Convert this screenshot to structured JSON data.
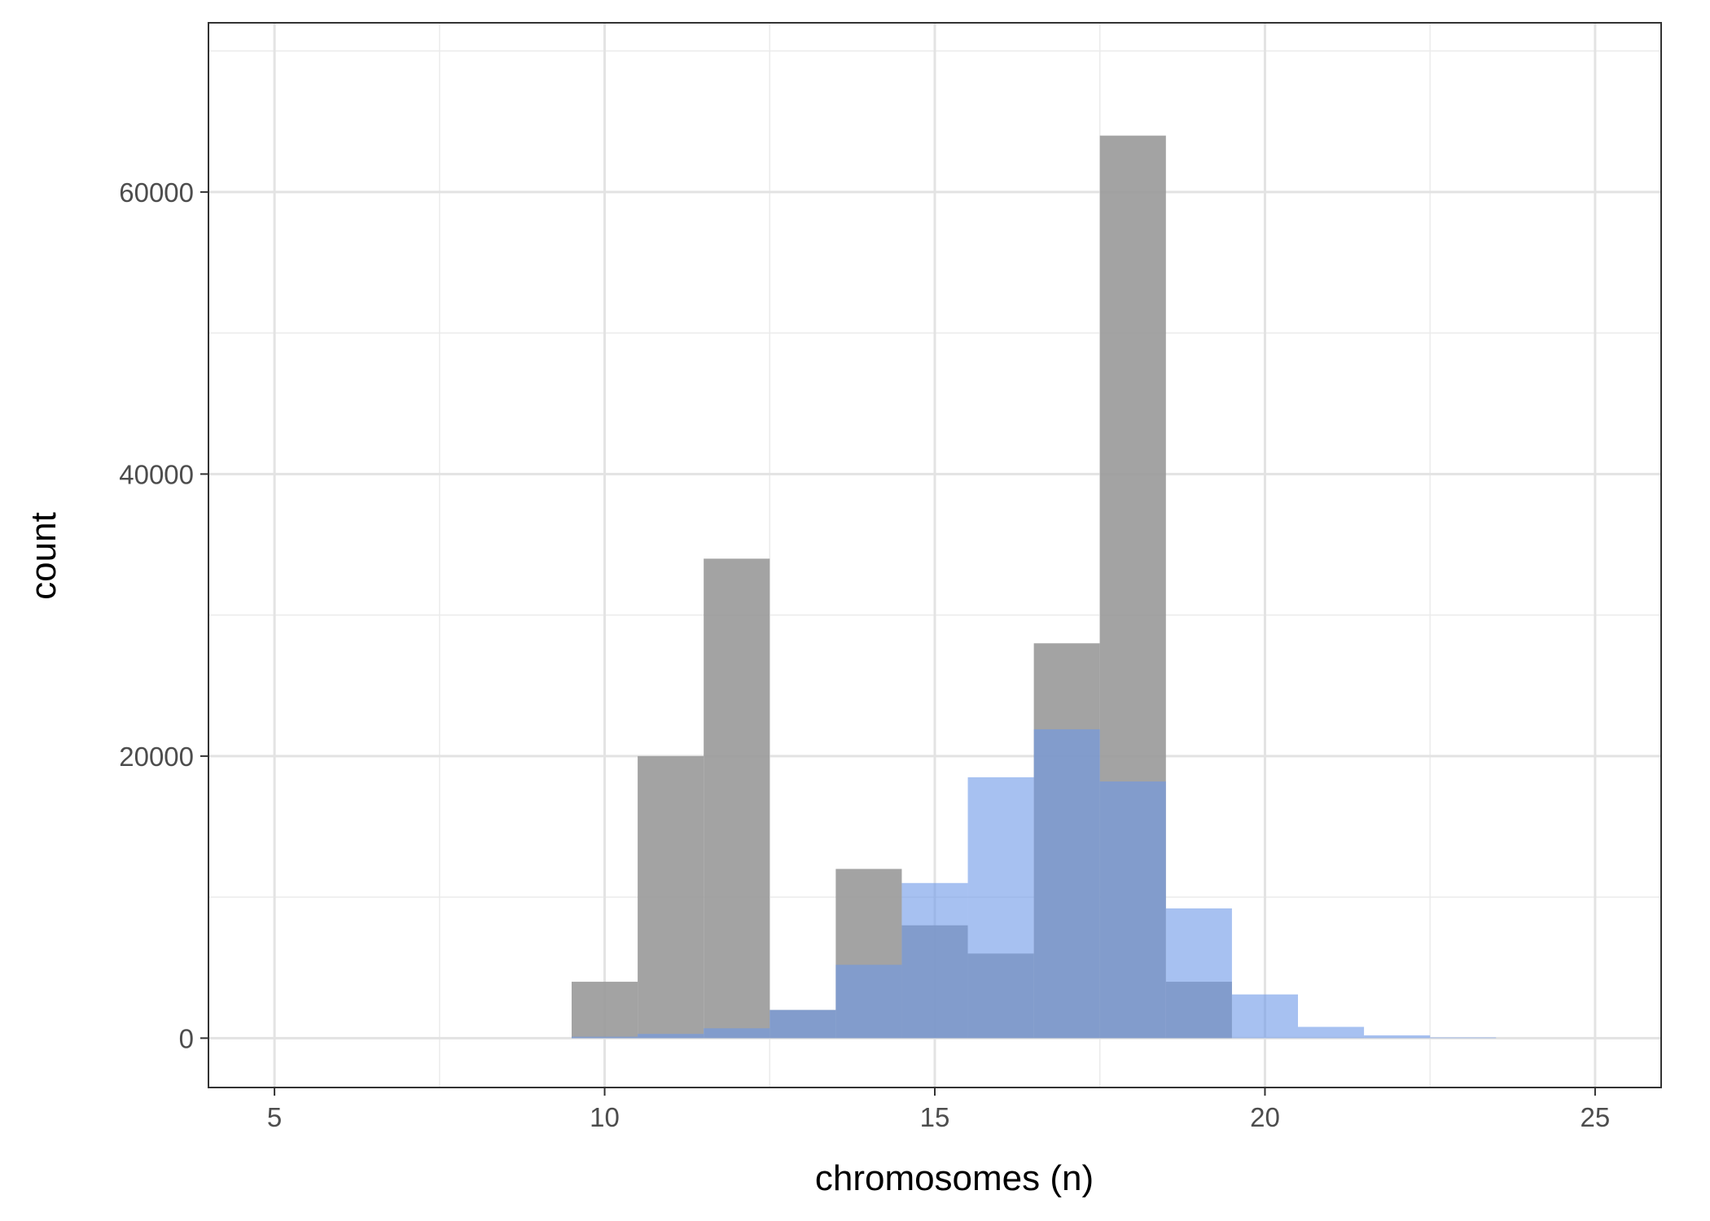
{
  "chart_data": {
    "type": "bar",
    "title": "",
    "xlabel": "chromosomes (n)",
    "ylabel": "count",
    "xlim": [
      4,
      26
    ],
    "ylim": [
      -3500,
      72000
    ],
    "x_ticks": [
      5,
      10,
      15,
      20,
      25
    ],
    "y_ticks": [
      0,
      20000,
      40000,
      60000
    ],
    "grid": true,
    "legend": "none",
    "bin_width": 1,
    "series": [
      {
        "color": "#999999",
        "opacity": 0.9,
        "bins": [
          10,
          11,
          12,
          13,
          14,
          15,
          16,
          17,
          18,
          19
        ],
        "values": [
          4000,
          20000,
          34000,
          2000,
          12000,
          8000,
          6000,
          28000,
          64000,
          4000
        ]
      },
      {
        "color": "#6d97e8",
        "opacity": 0.6,
        "bins": [
          10,
          11,
          12,
          13,
          14,
          15,
          16,
          17,
          18,
          19,
          20,
          21,
          22,
          23
        ],
        "values": [
          100,
          300,
          700,
          2000,
          5200,
          11000,
          18500,
          21900,
          18200,
          9200,
          3100,
          800,
          200,
          50
        ]
      }
    ]
  }
}
